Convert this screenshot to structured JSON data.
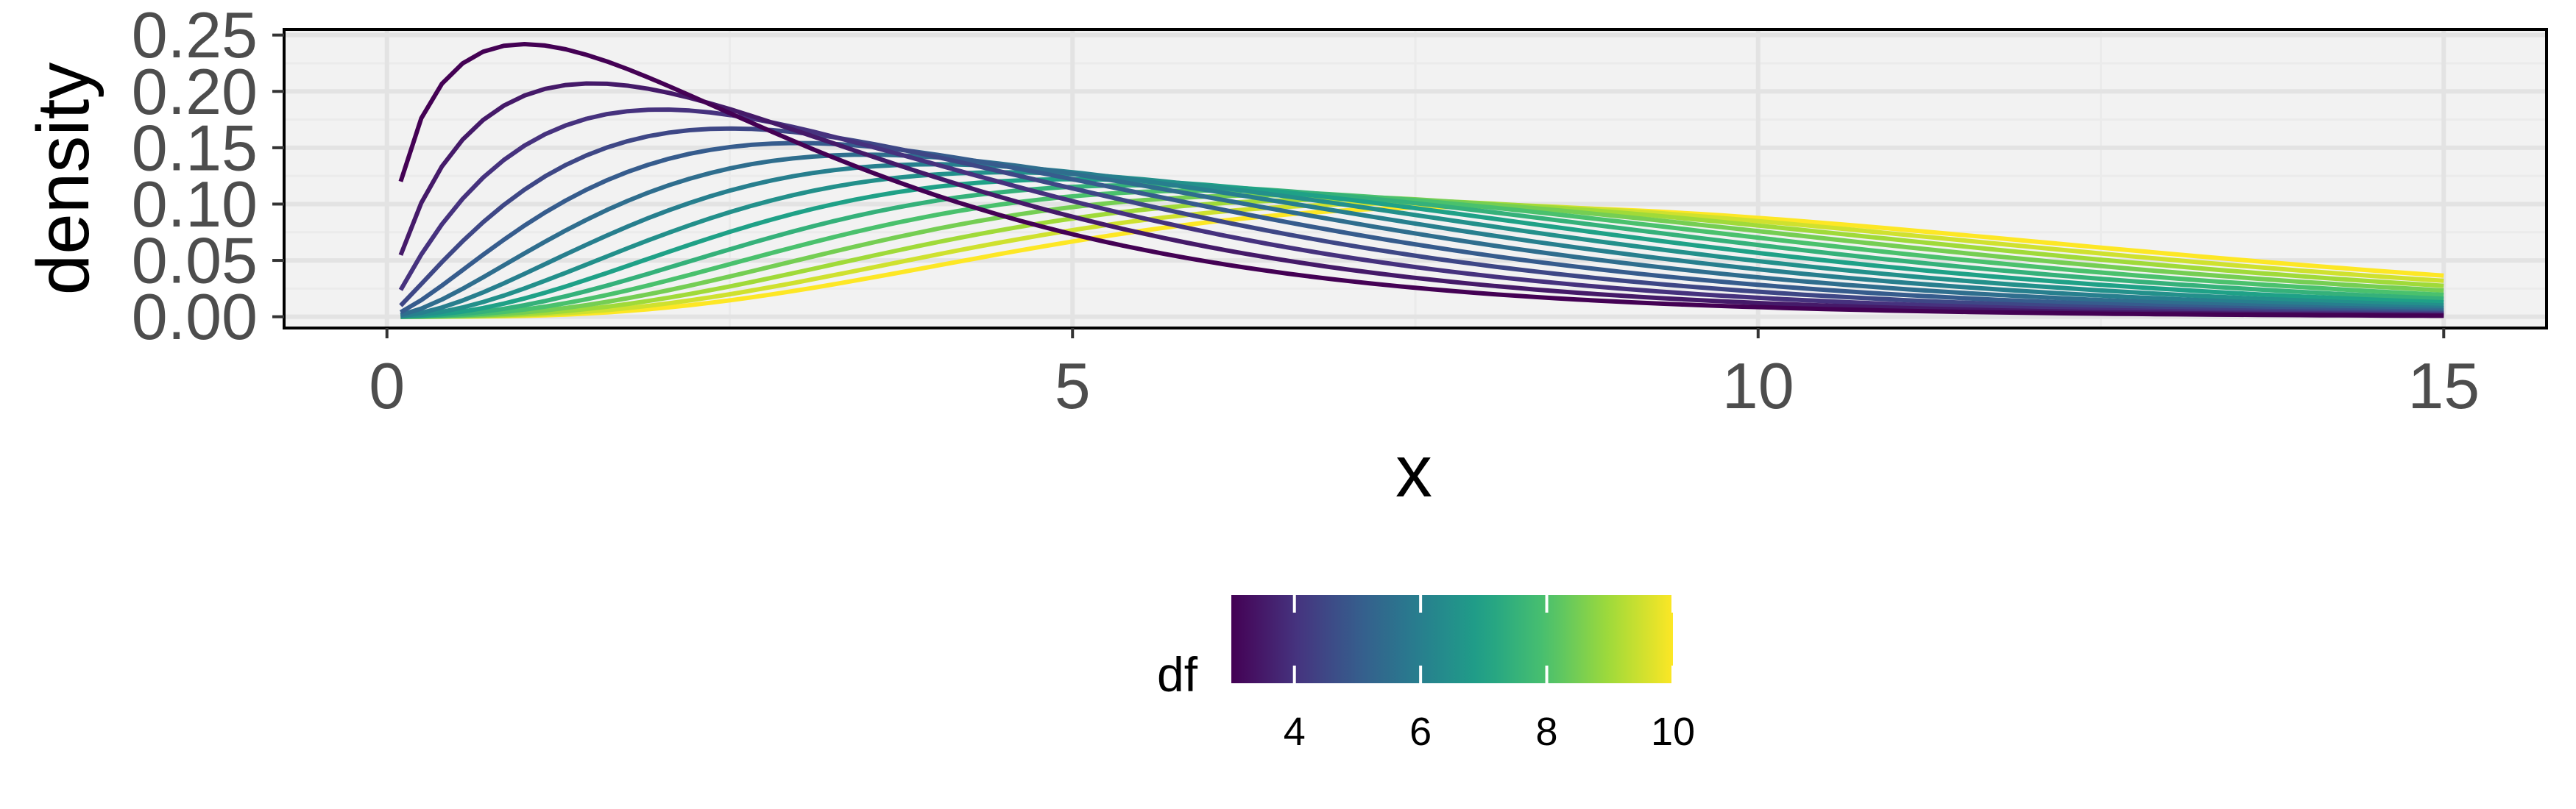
{
  "chart_data": {
    "type": "line",
    "title": "",
    "xlabel": "x",
    "ylabel": "density",
    "xlim": [
      -0.75,
      15.75
    ],
    "ylim": [
      -0.01,
      0.255
    ],
    "x_ticks": [
      "0",
      "5",
      "10",
      "15"
    ],
    "y_ticks": [
      "0.00",
      "0.05",
      "0.10",
      "0.15",
      "0.20",
      "0.25"
    ],
    "grid": true,
    "legend": {
      "title": "df",
      "placement": "bottom",
      "type": "colorbar",
      "range": [
        3,
        10
      ],
      "ticks": [
        "4",
        "6",
        "8",
        "10"
      ],
      "colormap": [
        "#440154",
        "#46327e",
        "#365c8d",
        "#277f8e",
        "#1fa187",
        "#4ac16d",
        "#a0da39",
        "#fde725"
      ]
    },
    "series_note": "chi-square density curves for df = 3.0, 3.5, ..., 10.0 evaluated at x = 0.1 ... 15",
    "df_values": [
      3,
      3.5,
      4,
      4.5,
      5,
      5.5,
      6,
      6.5,
      7,
      7.5,
      8,
      8.5,
      9,
      9.5,
      10
    ],
    "x_range": [
      0.1,
      15
    ]
  }
}
